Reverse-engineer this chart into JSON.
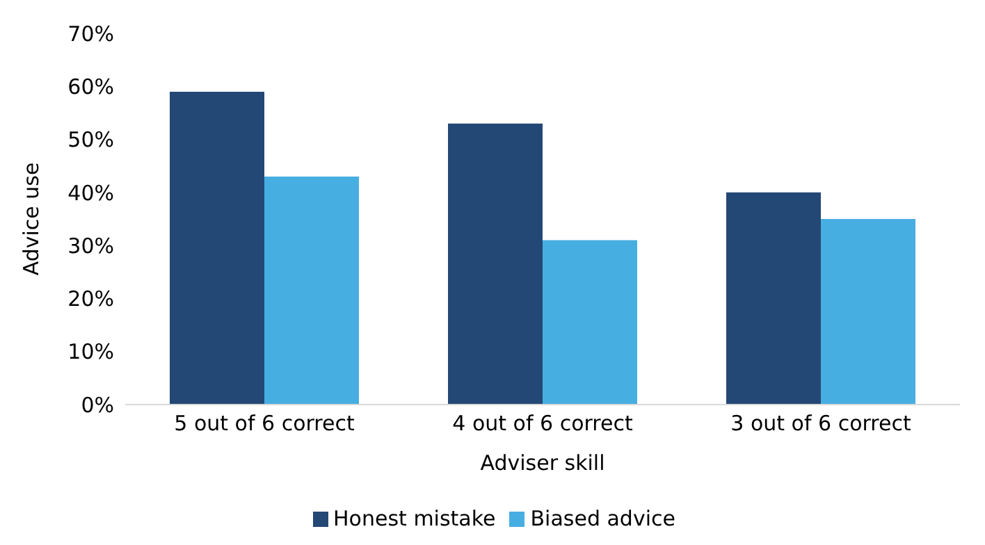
{
  "chart_data": {
    "type": "bar",
    "xlabel": "Adviser skill",
    "ylabel": "Advice use",
    "categories": [
      "5 out of 6 correct",
      "4 out of 6 correct",
      "3 out of 6 correct"
    ],
    "series": [
      {
        "name": "Honest mistake",
        "color": "#244875",
        "values": [
          59,
          53,
          40
        ]
      },
      {
        "name": "Biased advice",
        "color": "#47aee2",
        "values": [
          43,
          31,
          35
        ]
      }
    ],
    "ylim": [
      0,
      70
    ],
    "yticks": [
      {
        "value": 0,
        "label": "0%"
      },
      {
        "value": 10,
        "label": "10%"
      },
      {
        "value": 20,
        "label": "20%"
      },
      {
        "value": 30,
        "label": "30%"
      },
      {
        "value": 40,
        "label": "40%"
      },
      {
        "value": 50,
        "label": "50%"
      },
      {
        "value": 60,
        "label": "60%"
      },
      {
        "value": 70,
        "label": "70%"
      }
    ],
    "grid": false,
    "legend": "bottom"
  }
}
